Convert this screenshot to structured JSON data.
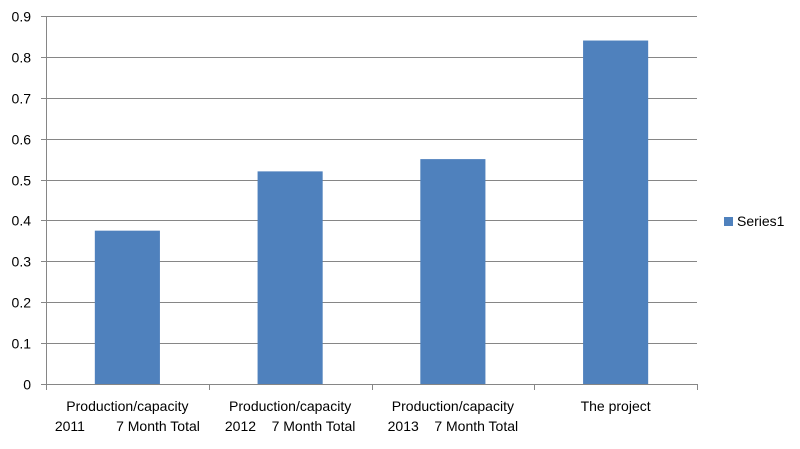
{
  "chart_data": {
    "type": "bar",
    "title": "",
    "xlabel": "",
    "ylabel": "",
    "categories": [
      [
        "Production/capacity",
        "2011        7 Month Total"
      ],
      [
        "Production/capacity",
        "2012    7 Month Total"
      ],
      [
        "Production/capacity",
        "2013    7 Month Total"
      ],
      [
        "The project"
      ]
    ],
    "series": [
      {
        "name": "Series1",
        "values": [
          0.375,
          0.52,
          0.55,
          0.84
        ]
      }
    ],
    "ylim": [
      0,
      0.9
    ],
    "yticks": [
      "0",
      "0.1",
      "0.2",
      "0.3",
      "0.4",
      "0.5",
      "0.6",
      "0.7",
      "0.8",
      "0.9"
    ],
    "grid": true,
    "legend": "right",
    "colors": {
      "bar": "#4F81BD",
      "grid": "#868686",
      "axis": "#868686"
    }
  }
}
